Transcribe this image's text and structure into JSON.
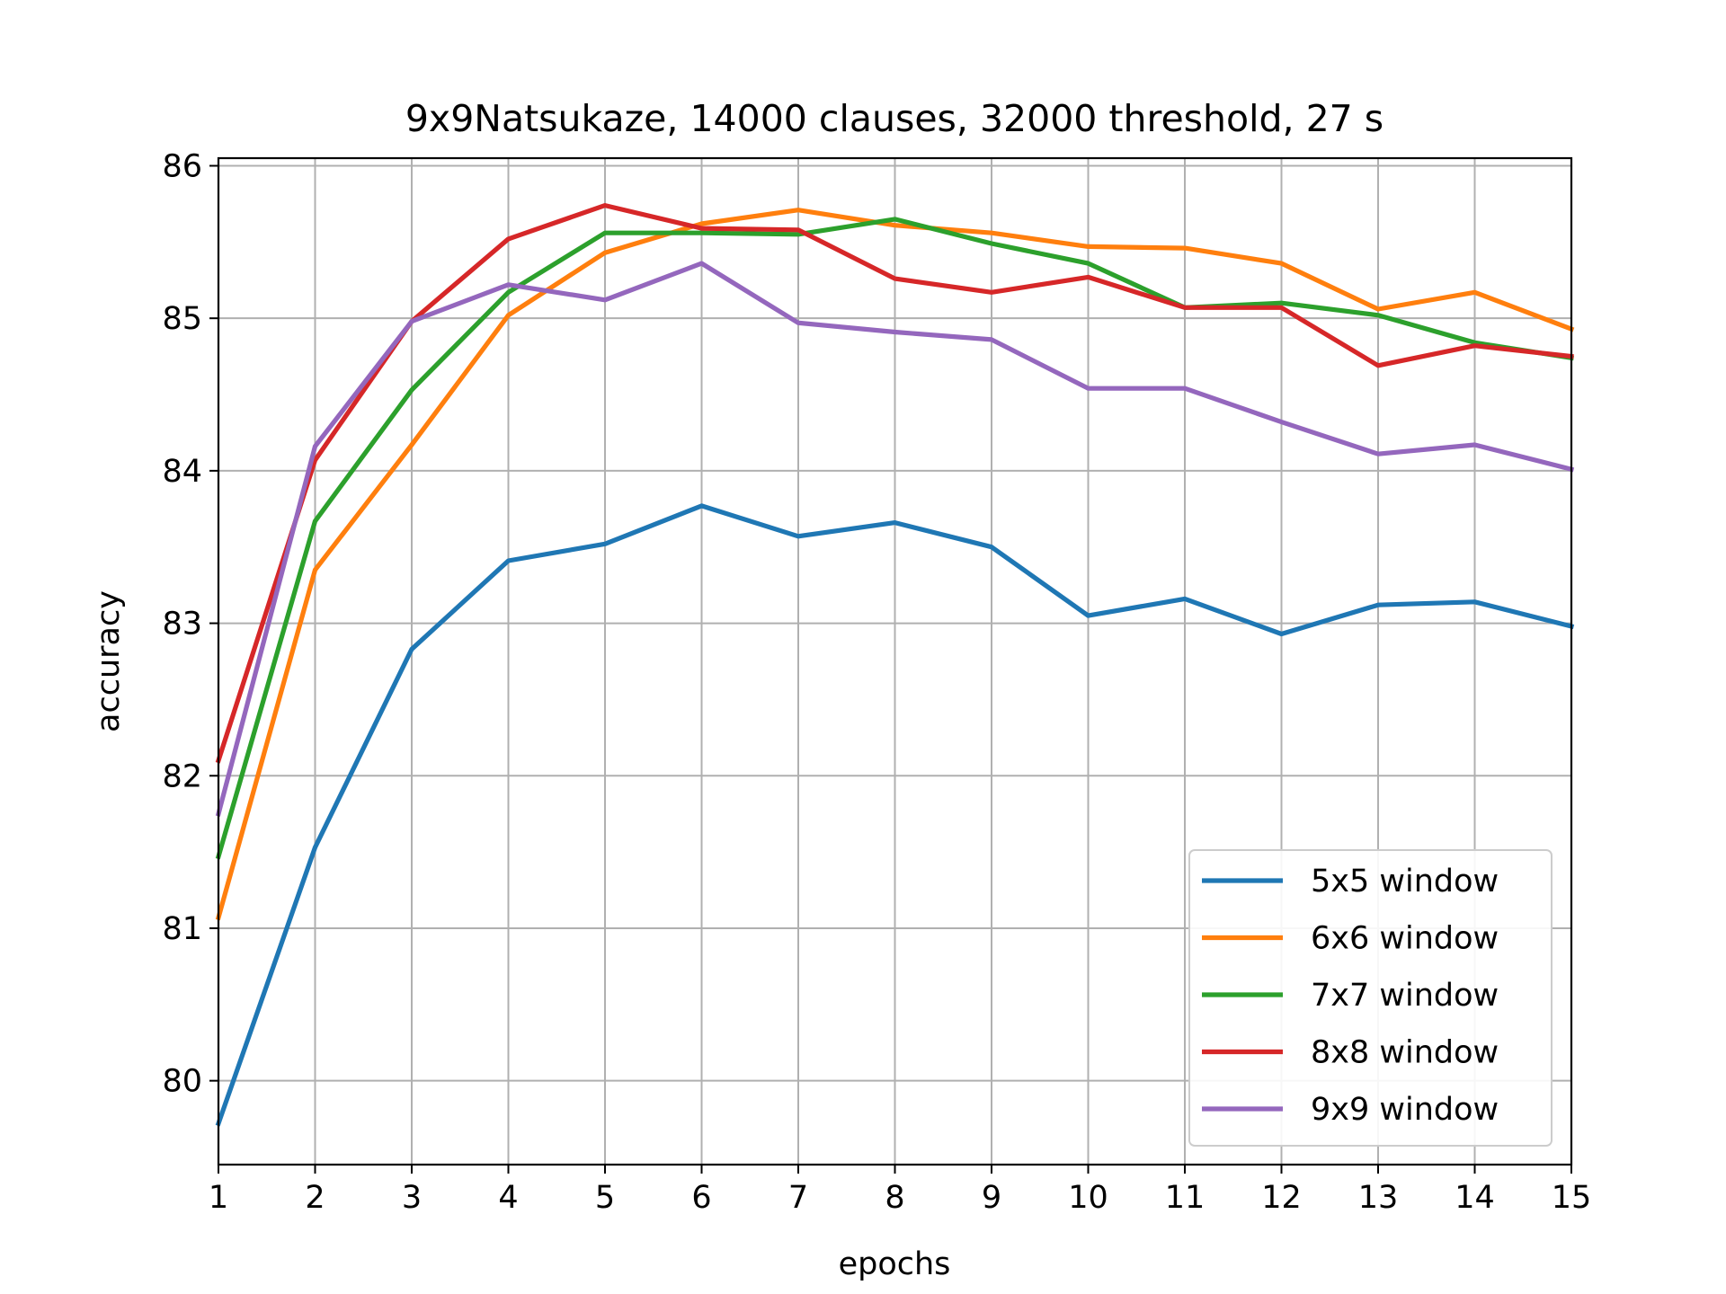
{
  "chart_data": {
    "type": "line",
    "title": "9x9Natsukaze, 14000 clauses, 32000 threshold, 27 s",
    "xlabel": "epochs",
    "ylabel": "accuracy",
    "xlim": [
      1,
      15
    ],
    "ylim": [
      79.45,
      86.05
    ],
    "x_ticks": [
      1,
      2,
      3,
      4,
      5,
      6,
      7,
      8,
      9,
      10,
      11,
      12,
      13,
      14,
      15
    ],
    "y_ticks": [
      80,
      81,
      82,
      83,
      84,
      85,
      86
    ],
    "grid": true,
    "legend_position": "lower-right",
    "x": [
      1,
      2,
      3,
      4,
      5,
      6,
      7,
      8,
      9,
      10,
      11,
      12,
      13,
      14,
      15
    ],
    "series": [
      {
        "name": "5x5 window",
        "color": "#1f77b4",
        "values": [
          79.72,
          81.53,
          82.83,
          83.41,
          83.52,
          83.77,
          83.57,
          83.66,
          83.5,
          83.05,
          83.16,
          82.93,
          83.12,
          83.14,
          82.98
        ]
      },
      {
        "name": "6x6 window",
        "color": "#ff7f0e",
        "values": [
          81.07,
          83.35,
          84.17,
          85.02,
          85.43,
          85.62,
          85.71,
          85.61,
          85.56,
          85.47,
          85.46,
          85.36,
          85.06,
          85.17,
          84.93
        ]
      },
      {
        "name": "7x7 window",
        "color": "#2ca02c",
        "values": [
          81.47,
          83.67,
          84.53,
          85.17,
          85.56,
          85.56,
          85.55,
          85.65,
          85.49,
          85.36,
          85.07,
          85.1,
          85.02,
          84.84,
          84.74
        ]
      },
      {
        "name": "8x8 window",
        "color": "#d62728",
        "values": [
          82.1,
          84.07,
          84.98,
          85.52,
          85.74,
          85.59,
          85.58,
          85.26,
          85.17,
          85.27,
          85.07,
          85.07,
          84.69,
          84.82,
          84.75
        ]
      },
      {
        "name": "9x9 window",
        "color": "#9467bd",
        "values": [
          81.75,
          84.16,
          84.98,
          85.22,
          85.12,
          85.36,
          84.97,
          84.91,
          84.86,
          84.54,
          84.54,
          84.32,
          84.11,
          84.17,
          84.01
        ]
      }
    ]
  }
}
